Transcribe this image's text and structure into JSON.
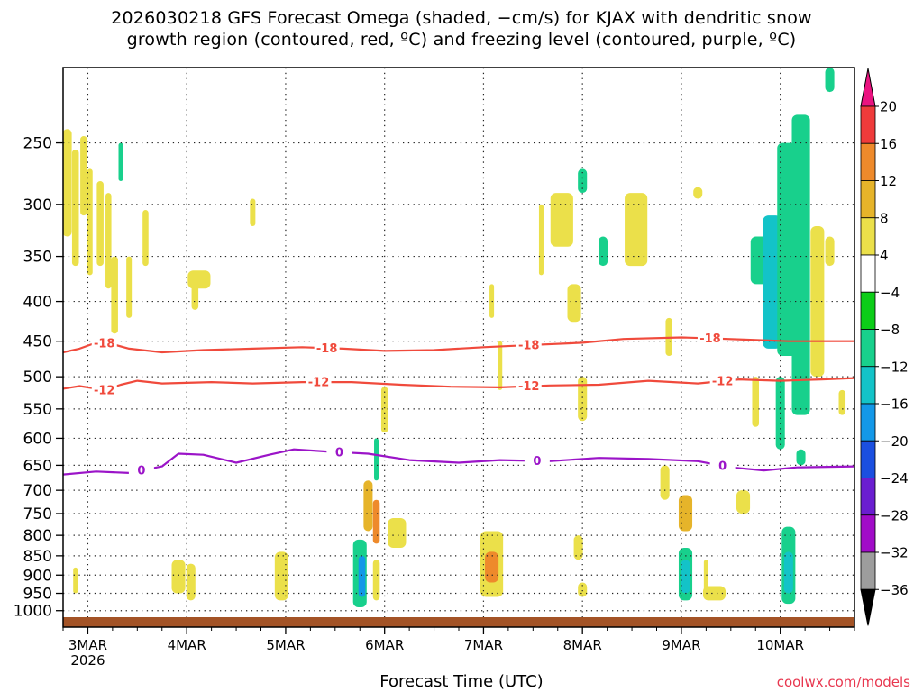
{
  "title_line1": "2026030218 GFS Forecast Omega (shaded, −cm/s) for KJAX with dendritic snow",
  "title_line2": "growth region (contoured, red, ºC) and freezing level (contoured, purple, ºC)",
  "credit": "coolwx.com/models",
  "chart_data": {
    "type": "heatmap",
    "xlabel": "Forecast Time (UTC)",
    "ylabel": "",
    "year_label": "2026",
    "x_ticks": [
      "3MAR",
      "4MAR",
      "5MAR",
      "6MAR",
      "7MAR",
      "8MAR",
      "9MAR",
      "10MAR"
    ],
    "x_tick_hours": [
      0,
      24,
      48,
      72,
      96,
      120,
      144,
      168
    ],
    "x_range_hours": [
      -6,
      186
    ],
    "y_ticks": [
      250,
      300,
      350,
      400,
      450,
      500,
      550,
      600,
      650,
      700,
      750,
      800,
      850,
      900,
      950,
      1000
    ],
    "y_axis": "pressure (hPa), log scale, reversed",
    "y_range": [
      200,
      1050
    ],
    "colorbar": {
      "levels": [
        20,
        16,
        12,
        8,
        4,
        -4,
        -8,
        -12,
        -16,
        -20,
        -24,
        -28,
        -32,
        -36
      ],
      "colors": [
        "#f7336a",
        "#ef3b3b",
        "#ee8a2b",
        "#e6b42a",
        "#ebe04a",
        "#ffffff",
        "#0ccd18",
        "#18d08c",
        "#13c3c8",
        "#1398e8",
        "#1b4fe0",
        "#6a1ed0",
        "#a10cc8",
        "#9d9d9d",
        "#000000"
      ],
      "top_arrow_color": "#ea1380",
      "bottom_arrow_color": "#000000"
    },
    "ground_color": "#a35326",
    "series": [
      {
        "name": "-18",
        "color": "#f04a3c",
        "labels": [
          "-18",
          "-18",
          "-18",
          "-18"
        ],
        "label_hours": [
          4,
          58,
          107,
          151
        ],
        "points": [
          [
            -6,
            465
          ],
          [
            -2,
            460
          ],
          [
            2,
            452
          ],
          [
            6,
            454
          ],
          [
            10,
            460
          ],
          [
            18,
            465
          ],
          [
            28,
            462
          ],
          [
            40,
            460
          ],
          [
            52,
            458
          ],
          [
            62,
            460
          ],
          [
            72,
            463
          ],
          [
            84,
            462
          ],
          [
            96,
            458
          ],
          [
            108,
            455
          ],
          [
            120,
            452
          ],
          [
            130,
            447
          ],
          [
            144,
            445
          ],
          [
            150,
            446
          ],
          [
            160,
            448
          ],
          [
            170,
            450
          ],
          [
            186,
            450
          ]
        ]
      },
      {
        "name": "-12",
        "color": "#f04a3c",
        "labels": [
          "-12",
          "-12",
          "-12",
          "-12"
        ],
        "label_hours": [
          4,
          56,
          107,
          154
        ],
        "points": [
          [
            -6,
            518
          ],
          [
            -2,
            514
          ],
          [
            4,
            520
          ],
          [
            8,
            512
          ],
          [
            12,
            506
          ],
          [
            18,
            510
          ],
          [
            30,
            508
          ],
          [
            40,
            510
          ],
          [
            52,
            508
          ],
          [
            64,
            508
          ],
          [
            76,
            512
          ],
          [
            88,
            515
          ],
          [
            100,
            516
          ],
          [
            112,
            513
          ],
          [
            124,
            512
          ],
          [
            136,
            506
          ],
          [
            148,
            510
          ],
          [
            158,
            504
          ],
          [
            168,
            506
          ],
          [
            178,
            504
          ],
          [
            186,
            502
          ]
        ]
      },
      {
        "name": "0",
        "color": "#9b14c8",
        "labels": [
          "0",
          "0",
          "0",
          "0"
        ],
        "label_hours": [
          13,
          61,
          109,
          154
        ],
        "points": [
          [
            -6,
            668
          ],
          [
            2,
            662
          ],
          [
            10,
            665
          ],
          [
            18,
            652
          ],
          [
            22,
            628
          ],
          [
            28,
            630
          ],
          [
            36,
            645
          ],
          [
            44,
            630
          ],
          [
            50,
            620
          ],
          [
            58,
            624
          ],
          [
            68,
            628
          ],
          [
            78,
            640
          ],
          [
            90,
            645
          ],
          [
            100,
            640
          ],
          [
            112,
            642
          ],
          [
            124,
            636
          ],
          [
            136,
            638
          ],
          [
            148,
            642
          ],
          [
            156,
            654
          ],
          [
            164,
            660
          ],
          [
            172,
            654
          ],
          [
            186,
            652
          ]
        ]
      }
    ],
    "omega_regions": [
      {
        "h": -5,
        "p0": 240,
        "p1": 330,
        "level": 4,
        "w": 2
      },
      {
        "h": -3,
        "p0": 255,
        "p1": 360,
        "level": 4,
        "w": 1.5
      },
      {
        "h": -1,
        "p0": 245,
        "p1": 310,
        "level": 4,
        "w": 1.5
      },
      {
        "h": 0.5,
        "p0": 270,
        "p1": 370,
        "level": 4,
        "w": 1.2
      },
      {
        "h": 3,
        "p0": 280,
        "p1": 360,
        "level": 4,
        "w": 1.5
      },
      {
        "h": 5,
        "p0": 290,
        "p1": 385,
        "level": 4,
        "w": 1.3
      },
      {
        "h": 6.5,
        "p0": 350,
        "p1": 440,
        "level": 4,
        "w": 1.5
      },
      {
        "h": 8,
        "p0": 250,
        "p1": 280,
        "level": -8,
        "w": 1
      },
      {
        "h": 10,
        "p0": 350,
        "p1": 420,
        "level": 4,
        "w": 1.2
      },
      {
        "h": 14,
        "p0": 305,
        "p1": 360,
        "level": 4,
        "w": 1.3
      },
      {
        "h": 27,
        "p0": 365,
        "p1": 385,
        "level": 4,
        "w": 5
      },
      {
        "h": 26,
        "p0": 380,
        "p1": 410,
        "level": 4,
        "w": 1.5
      },
      {
        "h": 40,
        "p0": 295,
        "p1": 320,
        "level": 4,
        "w": 1.2
      },
      {
        "h": 70,
        "p0": 600,
        "p1": 680,
        "level": -8,
        "w": 1
      },
      {
        "h": 72,
        "p0": 515,
        "p1": 590,
        "level": 4,
        "w": 1.5
      },
      {
        "h": 98,
        "p0": 380,
        "p1": 420,
        "level": 4,
        "w": 1
      },
      {
        "h": 100,
        "p0": 450,
        "p1": 520,
        "level": 4,
        "w": 1
      },
      {
        "h": 115,
        "p0": 290,
        "p1": 340,
        "level": 4,
        "w": 5
      },
      {
        "h": 120,
        "p0": 270,
        "p1": 290,
        "level": -8,
        "w": 2
      },
      {
        "h": 125,
        "p0": 330,
        "p1": 360,
        "level": -8,
        "w": 2
      },
      {
        "h": 133,
        "p0": 290,
        "p1": 360,
        "level": 4,
        "w": 5
      },
      {
        "h": 118,
        "p0": 380,
        "p1": 425,
        "level": 4,
        "w": 3
      },
      {
        "h": 110,
        "p0": 300,
        "p1": 370,
        "level": 4,
        "w": 1
      },
      {
        "h": 141,
        "p0": 420,
        "p1": 470,
        "level": 4,
        "w": 1.5
      },
      {
        "h": 148,
        "p0": 285,
        "p1": 295,
        "level": 4,
        "w": 2
      },
      {
        "h": 163,
        "p0": 330,
        "p1": 380,
        "level": -8,
        "w": 4
      },
      {
        "h": 166,
        "p0": 310,
        "p1": 460,
        "level": -12,
        "w": 4
      },
      {
        "h": 170,
        "p0": 250,
        "p1": 470,
        "level": -8,
        "w": 5
      },
      {
        "h": 173,
        "p0": 230,
        "p1": 560,
        "level": -8,
        "w": 4
      },
      {
        "h": 177,
        "p0": 320,
        "p1": 500,
        "level": 4,
        "w": 3
      },
      {
        "h": 180,
        "p0": 330,
        "p1": 360,
        "level": 4,
        "w": 2
      },
      {
        "h": 180,
        "p0": 200,
        "p1": 215,
        "level": -8,
        "w": 2
      },
      {
        "h": 168,
        "p0": 500,
        "p1": 620,
        "level": -8,
        "w": 2
      },
      {
        "h": 162,
        "p0": 500,
        "p1": 580,
        "level": 4,
        "w": 1.5
      },
      {
        "h": 183,
        "p0": 520,
        "p1": 560,
        "level": 4,
        "w": 1.5
      },
      {
        "h": 120,
        "p0": 500,
        "p1": 570,
        "level": 4,
        "w": 2
      },
      {
        "h": 68,
        "p0": 680,
        "p1": 790,
        "level": 8,
        "w": 2
      },
      {
        "h": 70,
        "p0": 720,
        "p1": 820,
        "level": 12,
        "w": 1.5
      },
      {
        "h": 75,
        "p0": 760,
        "p1": 830,
        "level": 4,
        "w": 4
      },
      {
        "h": 66,
        "p0": 810,
        "p1": 990,
        "level": -8,
        "w": 3
      },
      {
        "h": 66.5,
        "p0": 850,
        "p1": 960,
        "level": -16,
        "w": 1.5
      },
      {
        "h": 70,
        "p0": 860,
        "p1": 970,
        "level": 4,
        "w": 1.5
      },
      {
        "h": 98,
        "p0": 790,
        "p1": 960,
        "level": 4,
        "w": 5
      },
      {
        "h": 98,
        "p0": 840,
        "p1": 920,
        "level": 12,
        "w": 3
      },
      {
        "h": 47,
        "p0": 840,
        "p1": 970,
        "level": 4,
        "w": 3
      },
      {
        "h": 22,
        "p0": 860,
        "p1": 950,
        "level": 4,
        "w": 3
      },
      {
        "h": 25,
        "p0": 870,
        "p1": 970,
        "level": 4,
        "w": 2
      },
      {
        "h": -3,
        "p0": 880,
        "p1": 950,
        "level": 4,
        "w": 1
      },
      {
        "h": 119,
        "p0": 800,
        "p1": 860,
        "level": 4,
        "w": 2
      },
      {
        "h": 120,
        "p0": 920,
        "p1": 960,
        "level": 4,
        "w": 2
      },
      {
        "h": 140,
        "p0": 650,
        "p1": 720,
        "level": 4,
        "w": 2
      },
      {
        "h": 145,
        "p0": 710,
        "p1": 790,
        "level": 8,
        "w": 3
      },
      {
        "h": 145,
        "p0": 830,
        "p1": 970,
        "level": -8,
        "w": 3
      },
      {
        "h": 145,
        "p0": 860,
        "p1": 950,
        "level": -12,
        "w": 2
      },
      {
        "h": 152,
        "p0": 930,
        "p1": 970,
        "level": 4,
        "w": 5
      },
      {
        "h": 150,
        "p0": 860,
        "p1": 950,
        "level": 4,
        "w": 1
      },
      {
        "h": 159,
        "p0": 700,
        "p1": 750,
        "level": 4,
        "w": 3
      },
      {
        "h": 170,
        "p0": 780,
        "p1": 980,
        "level": -8,
        "w": 3
      },
      {
        "h": 170,
        "p0": 840,
        "p1": 950,
        "level": -12,
        "w": 2
      },
      {
        "h": 173,
        "p0": 620,
        "p1": 650,
        "level": -8,
        "w": 2
      }
    ]
  }
}
